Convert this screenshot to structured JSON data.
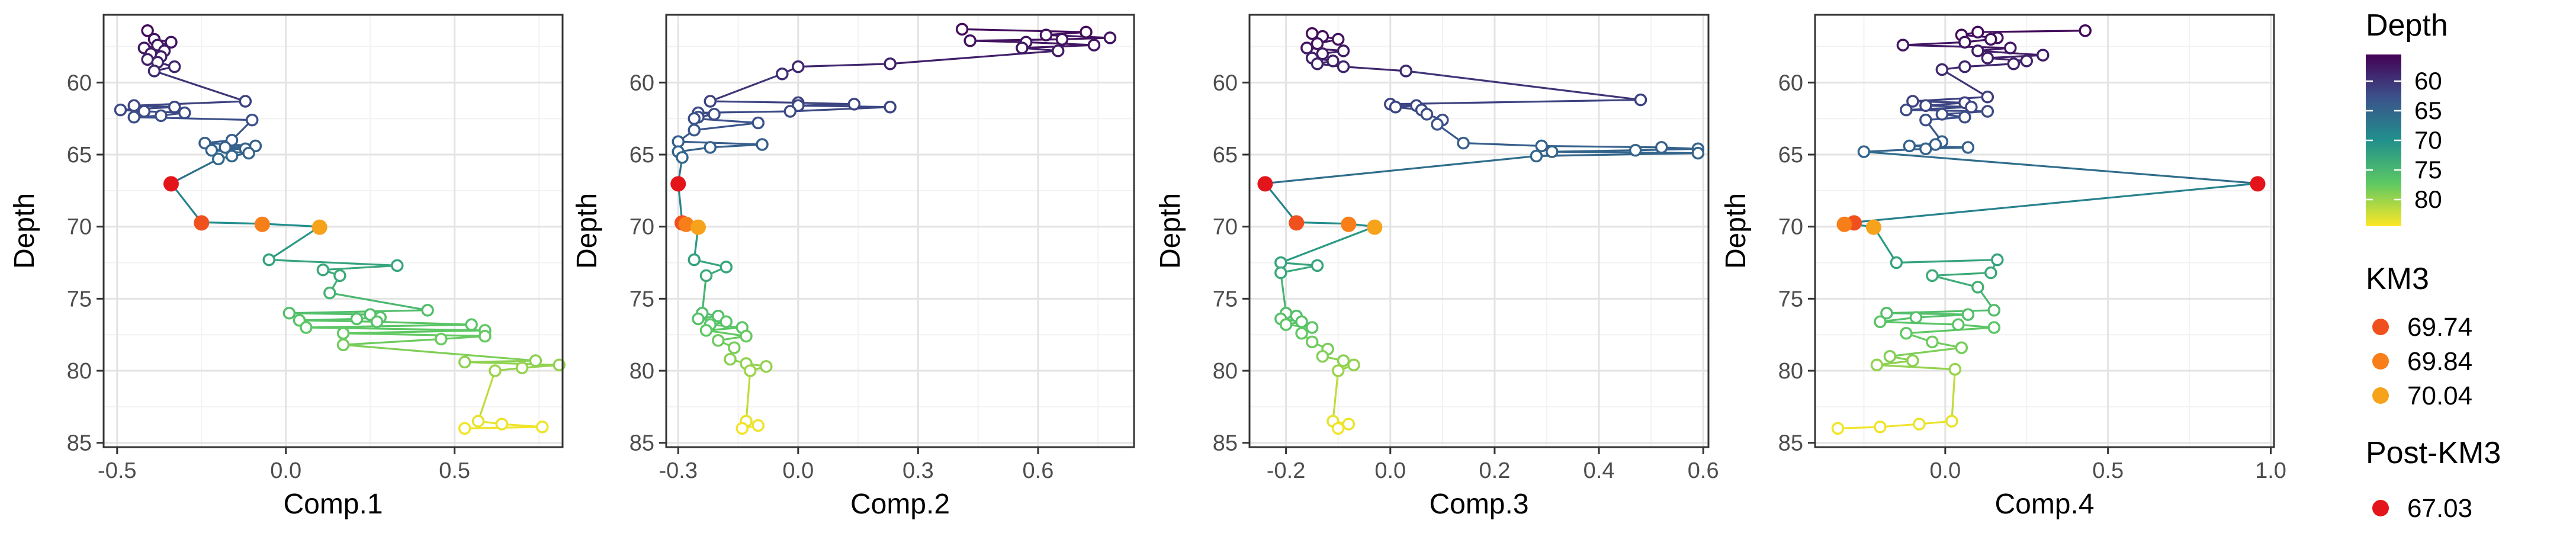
{
  "chart_data": [
    {
      "type": "line",
      "xlabel": "Comp.1",
      "ylabel": "Depth",
      "x_ticks": [
        -0.5,
        0.0,
        0.5
      ],
      "x_tick_labels": [
        "-0.5",
        "0.0",
        "0.5"
      ],
      "y_ticks": [
        60,
        65,
        70,
        75,
        80,
        85
      ],
      "y_tick_labels": [
        "60",
        "65",
        "70",
        "75",
        "80",
        "85"
      ],
      "xlim": [
        -0.54,
        0.82
      ],
      "ylim": [
        85.3,
        55.3
      ],
      "y_reversed": true,
      "grid": true,
      "path": [
        [
          -0.41,
          56.4
        ],
        [
          -0.39,
          57.0
        ],
        [
          -0.34,
          57.2
        ],
        [
          -0.38,
          57.4
        ],
        [
          -0.42,
          57.6
        ],
        [
          -0.36,
          57.8
        ],
        [
          -0.4,
          58.0
        ],
        [
          -0.37,
          58.2
        ],
        [
          -0.41,
          58.4
        ],
        [
          -0.38,
          58.6
        ],
        [
          -0.33,
          58.9
        ],
        [
          -0.39,
          59.2
        ],
        [
          -0.12,
          61.3
        ],
        [
          -0.45,
          61.6
        ],
        [
          -0.33,
          61.7
        ],
        [
          -0.49,
          61.9
        ],
        [
          -0.42,
          62.0
        ],
        [
          -0.3,
          62.1
        ],
        [
          -0.37,
          62.3
        ],
        [
          -0.45,
          62.4
        ],
        [
          -0.1,
          62.6
        ],
        [
          -0.16,
          64.0
        ],
        [
          -0.24,
          64.2
        ],
        [
          -0.09,
          64.4
        ],
        [
          -0.18,
          64.5
        ],
        [
          -0.12,
          64.6
        ],
        [
          -0.22,
          64.7
        ],
        [
          -0.11,
          64.9
        ],
        [
          -0.16,
          65.1
        ],
        [
          -0.2,
          65.3
        ],
        [
          -0.34,
          67.0
        ],
        [
          -0.25,
          69.7
        ],
        [
          -0.07,
          69.8
        ],
        [
          0.1,
          70.0
        ],
        [
          -0.05,
          72.3
        ],
        [
          0.33,
          72.7
        ],
        [
          0.11,
          73.0
        ],
        [
          0.16,
          73.4
        ],
        [
          0.13,
          74.6
        ],
        [
          0.42,
          75.8
        ],
        [
          0.01,
          76.0
        ],
        [
          0.25,
          76.1
        ],
        [
          0.28,
          76.3
        ],
        [
          0.21,
          76.4
        ],
        [
          0.04,
          76.5
        ],
        [
          0.27,
          76.6
        ],
        [
          0.55,
          76.8
        ],
        [
          0.06,
          77.0
        ],
        [
          0.59,
          77.2
        ],
        [
          0.17,
          77.4
        ],
        [
          0.59,
          77.6
        ],
        [
          0.46,
          77.8
        ],
        [
          0.17,
          78.2
        ],
        [
          0.74,
          79.3
        ],
        [
          0.53,
          79.4
        ],
        [
          0.81,
          79.6
        ],
        [
          0.7,
          79.8
        ],
        [
          0.62,
          80.0
        ],
        [
          0.57,
          83.5
        ],
        [
          0.64,
          83.7
        ],
        [
          0.76,
          83.9
        ],
        [
          0.53,
          84.0
        ]
      ],
      "highlight_points": [
        {
          "x": -0.25,
          "y": 69.74,
          "group": "KM3"
        },
        {
          "x": -0.07,
          "y": 69.84,
          "group": "KM3"
        },
        {
          "x": 0.1,
          "y": 70.04,
          "group": "KM3"
        },
        {
          "x": -0.34,
          "y": 67.03,
          "group": "Post-KM3"
        }
      ]
    },
    {
      "type": "line",
      "xlabel": "Comp.2",
      "ylabel": "Depth",
      "x_ticks": [
        -0.3,
        0.0,
        0.3,
        0.6
      ],
      "x_tick_labels": [
        "-0.3",
        "0.0",
        "0.3",
        "0.6"
      ],
      "y_ticks": [
        60,
        65,
        70,
        75,
        80,
        85
      ],
      "y_tick_labels": [
        "60",
        "65",
        "70",
        "75",
        "80",
        "85"
      ],
      "xlim": [
        -0.33,
        0.84
      ],
      "ylim": [
        85.3,
        55.3
      ],
      "y_reversed": true,
      "grid": true,
      "path": [
        [
          0.41,
          56.3
        ],
        [
          0.72,
          56.5
        ],
        [
          0.62,
          56.7
        ],
        [
          0.78,
          56.9
        ],
        [
          0.66,
          57.0
        ],
        [
          0.43,
          57.1
        ],
        [
          0.57,
          57.2
        ],
        [
          0.74,
          57.4
        ],
        [
          0.56,
          57.6
        ],
        [
          0.65,
          57.8
        ],
        [
          0.23,
          58.7
        ],
        [
          0.0,
          58.9
        ],
        [
          -0.04,
          59.4
        ],
        [
          -0.22,
          61.3
        ],
        [
          0.0,
          61.4
        ],
        [
          0.14,
          61.5
        ],
        [
          0.0,
          61.6
        ],
        [
          0.23,
          61.7
        ],
        [
          -0.02,
          62.0
        ],
        [
          -0.25,
          62.1
        ],
        [
          -0.21,
          62.2
        ],
        [
          -0.25,
          62.4
        ],
        [
          -0.26,
          62.5
        ],
        [
          -0.1,
          62.8
        ],
        [
          -0.26,
          63.3
        ],
        [
          -0.3,
          64.1
        ],
        [
          -0.09,
          64.3
        ],
        [
          -0.22,
          64.5
        ],
        [
          -0.3,
          64.8
        ],
        [
          -0.29,
          65.2
        ],
        [
          -0.3,
          67.0
        ],
        [
          -0.29,
          69.7
        ],
        [
          -0.28,
          69.8
        ],
        [
          -0.25,
          70.0
        ],
        [
          -0.26,
          72.3
        ],
        [
          -0.18,
          72.8
        ],
        [
          -0.23,
          73.4
        ],
        [
          -0.24,
          76.0
        ],
        [
          -0.2,
          76.2
        ],
        [
          -0.25,
          76.4
        ],
        [
          -0.18,
          76.6
        ],
        [
          -0.22,
          76.8
        ],
        [
          -0.14,
          77.0
        ],
        [
          -0.23,
          77.2
        ],
        [
          -0.13,
          77.6
        ],
        [
          -0.2,
          77.9
        ],
        [
          -0.16,
          78.4
        ],
        [
          -0.17,
          79.2
        ],
        [
          -0.13,
          79.5
        ],
        [
          -0.08,
          79.7
        ],
        [
          -0.12,
          80.0
        ],
        [
          -0.13,
          83.5
        ],
        [
          -0.1,
          83.8
        ],
        [
          -0.14,
          84.0
        ]
      ],
      "highlight_points": [
        {
          "x": -0.29,
          "y": 69.74,
          "group": "KM3"
        },
        {
          "x": -0.28,
          "y": 69.84,
          "group": "KM3"
        },
        {
          "x": -0.25,
          "y": 70.04,
          "group": "KM3"
        },
        {
          "x": -0.3,
          "y": 67.03,
          "group": "Post-KM3"
        }
      ]
    },
    {
      "type": "line",
      "xlabel": "Comp.3",
      "ylabel": "Depth",
      "x_ticks": [
        -0.2,
        0.0,
        0.2,
        0.4,
        0.6
      ],
      "x_tick_labels": [
        "-0.2",
        "0.0",
        "0.2",
        "0.4",
        "0.6"
      ],
      "y_ticks": [
        60,
        65,
        70,
        75,
        80,
        85
      ],
      "y_tick_labels": [
        "60",
        "65",
        "70",
        "75",
        "80",
        "85"
      ],
      "xlim": [
        -0.27,
        0.61
      ],
      "ylim": [
        85.3,
        55.3
      ],
      "y_reversed": true,
      "grid": true,
      "path": [
        [
          -0.15,
          56.6
        ],
        [
          -0.13,
          56.8
        ],
        [
          -0.1,
          57.0
        ],
        [
          -0.14,
          57.3
        ],
        [
          -0.16,
          57.6
        ],
        [
          -0.09,
          57.8
        ],
        [
          -0.13,
          58.0
        ],
        [
          -0.15,
          58.3
        ],
        [
          -0.11,
          58.5
        ],
        [
          -0.14,
          58.7
        ],
        [
          -0.09,
          58.9
        ],
        [
          0.03,
          59.2
        ],
        [
          0.48,
          61.2
        ],
        [
          0.0,
          61.5
        ],
        [
          0.05,
          61.6
        ],
        [
          0.01,
          61.7
        ],
        [
          0.06,
          61.9
        ],
        [
          0.07,
          62.2
        ],
        [
          0.1,
          62.6
        ],
        [
          0.09,
          62.9
        ],
        [
          0.14,
          64.2
        ],
        [
          0.29,
          64.4
        ],
        [
          0.52,
          64.5
        ],
        [
          0.59,
          64.6
        ],
        [
          0.47,
          64.7
        ],
        [
          0.31,
          64.8
        ],
        [
          0.59,
          64.9
        ],
        [
          0.28,
          65.1
        ],
        [
          -0.24,
          67.0
        ],
        [
          -0.18,
          69.7
        ],
        [
          -0.08,
          69.8
        ],
        [
          -0.03,
          70.0
        ],
        [
          -0.21,
          72.5
        ],
        [
          -0.14,
          72.7
        ],
        [
          -0.21,
          73.2
        ],
        [
          -0.2,
          76.0
        ],
        [
          -0.18,
          76.2
        ],
        [
          -0.21,
          76.4
        ],
        [
          -0.17,
          76.6
        ],
        [
          -0.2,
          76.8
        ],
        [
          -0.15,
          77.0
        ],
        [
          -0.17,
          77.4
        ],
        [
          -0.15,
          78.0
        ],
        [
          -0.12,
          78.5
        ],
        [
          -0.13,
          79.0
        ],
        [
          -0.09,
          79.3
        ],
        [
          -0.07,
          79.6
        ],
        [
          -0.1,
          80.0
        ],
        [
          -0.11,
          83.5
        ],
        [
          -0.08,
          83.7
        ],
        [
          -0.1,
          84.0
        ]
      ],
      "highlight_points": [
        {
          "x": -0.18,
          "y": 69.74,
          "group": "KM3"
        },
        {
          "x": -0.08,
          "y": 69.84,
          "group": "KM3"
        },
        {
          "x": -0.03,
          "y": 70.04,
          "group": "KM3"
        },
        {
          "x": -0.24,
          "y": 67.03,
          "group": "Post-KM3"
        }
      ]
    },
    {
      "type": "line",
      "xlabel": "Comp.4",
      "ylabel": "Depth",
      "x_ticks": [
        0.0,
        0.5,
        1.0
      ],
      "x_tick_labels": [
        "0.0",
        "0.5",
        "1.0"
      ],
      "y_ticks": [
        60,
        65,
        70,
        75,
        80,
        85
      ],
      "y_tick_labels": [
        "60",
        "65",
        "70",
        "75",
        "80",
        "85"
      ],
      "xlim": [
        -0.4,
        1.01
      ],
      "ylim": [
        85.3,
        55.3
      ],
      "y_reversed": true,
      "grid": true,
      "path": [
        [
          0.43,
          56.4
        ],
        [
          0.1,
          56.5
        ],
        [
          0.05,
          56.7
        ],
        [
          0.16,
          56.9
        ],
        [
          0.14,
          57.0
        ],
        [
          0.06,
          57.2
        ],
        [
          -0.13,
          57.4
        ],
        [
          0.2,
          57.6
        ],
        [
          0.1,
          57.8
        ],
        [
          0.3,
          58.1
        ],
        [
          0.13,
          58.3
        ],
        [
          0.25,
          58.5
        ],
        [
          0.21,
          58.7
        ],
        [
          0.06,
          58.9
        ],
        [
          -0.01,
          59.1
        ],
        [
          0.13,
          61.0
        ],
        [
          -0.1,
          61.3
        ],
        [
          0.06,
          61.4
        ],
        [
          -0.06,
          61.6
        ],
        [
          0.08,
          61.7
        ],
        [
          -0.12,
          61.9
        ],
        [
          0.13,
          62.0
        ],
        [
          -0.01,
          62.2
        ],
        [
          0.06,
          62.4
        ],
        [
          -0.06,
          62.6
        ],
        [
          -0.01,
          64.1
        ],
        [
          -0.03,
          64.3
        ],
        [
          -0.11,
          64.4
        ],
        [
          0.07,
          64.5
        ],
        [
          -0.06,
          64.6
        ],
        [
          -0.25,
          64.8
        ],
        [
          0.96,
          67.0
        ],
        [
          -0.28,
          69.7
        ],
        [
          -0.31,
          69.8
        ],
        [
          -0.22,
          70.0
        ],
        [
          -0.15,
          72.5
        ],
        [
          0.16,
          72.3
        ],
        [
          0.14,
          73.2
        ],
        [
          -0.04,
          73.4
        ],
        [
          0.1,
          74.2
        ],
        [
          0.15,
          75.8
        ],
        [
          -0.18,
          76.0
        ],
        [
          0.07,
          76.1
        ],
        [
          -0.09,
          76.3
        ],
        [
          -0.2,
          76.6
        ],
        [
          0.04,
          76.8
        ],
        [
          0.15,
          77.0
        ],
        [
          -0.12,
          77.4
        ],
        [
          -0.04,
          78.0
        ],
        [
          0.05,
          78.4
        ],
        [
          -0.17,
          79.0
        ],
        [
          -0.1,
          79.3
        ],
        [
          -0.21,
          79.6
        ],
        [
          0.03,
          79.9
        ],
        [
          0.02,
          83.5
        ],
        [
          -0.08,
          83.7
        ],
        [
          -0.2,
          83.9
        ],
        [
          -0.33,
          84.0
        ]
      ],
      "highlight_points": [
        {
          "x": -0.28,
          "y": 69.74,
          "group": "KM3"
        },
        {
          "x": -0.31,
          "y": 69.84,
          "group": "KM3"
        },
        {
          "x": -0.22,
          "y": 70.04,
          "group": "KM3"
        },
        {
          "x": 0.96,
          "y": 67.03,
          "group": "Post-KM3"
        }
      ]
    }
  ],
  "legend": {
    "colorbar": {
      "title": "Depth",
      "tick_labels": [
        "60",
        "65",
        "70",
        "75",
        "80"
      ],
      "ticks": [
        60,
        65,
        70,
        75,
        80
      ],
      "range": [
        55.5,
        84.5
      ],
      "colors": [
        "#440154",
        "#3b528b",
        "#21908c",
        "#5dc863",
        "#fde725"
      ]
    },
    "km3": {
      "title": "KM3",
      "entries": [
        {
          "label": "69.74",
          "color": "#F0501E"
        },
        {
          "label": "69.84",
          "color": "#F77E19"
        },
        {
          "label": "70.04",
          "color": "#F6A21B"
        }
      ]
    },
    "post_km3": {
      "title": "Post-KM3",
      "entries": [
        {
          "label": "67.03",
          "color": "#E4141B"
        }
      ]
    }
  }
}
